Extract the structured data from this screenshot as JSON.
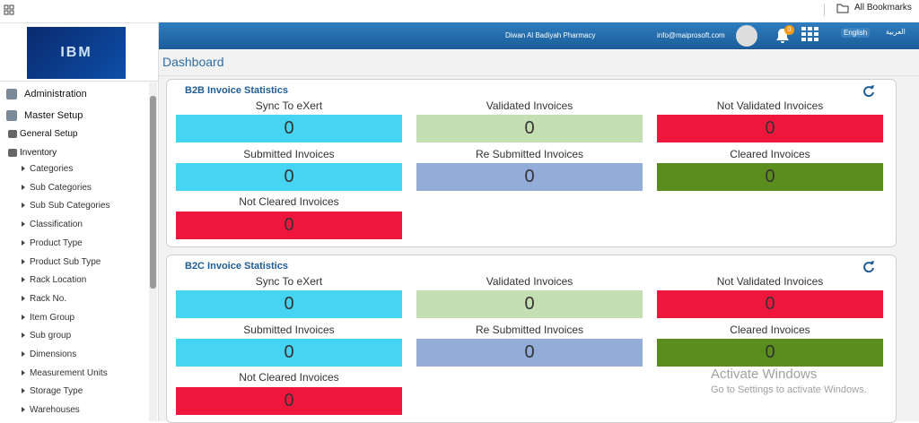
{
  "browser": {
    "bookmarks": "All Bookmarks"
  },
  "header": {
    "company": "Diwan Al Badiyah Pharmacy",
    "email": "info@maiprosoft.com",
    "notifications": 0,
    "languages": [
      "English",
      "العربية"
    ]
  },
  "logo": "IBM",
  "sidebar": {
    "sections": [
      "Administration",
      "Master Setup"
    ],
    "subsections": [
      "General Setup",
      "Inventory"
    ],
    "items": [
      "Categories",
      "Sub Categories",
      "Sub Sub Categories",
      "Classification",
      "Product Type",
      "Product Sub Type",
      "Rack Location",
      "Rack No.",
      "Item Group",
      "Sub group",
      "Dimensions",
      "Measurement Units",
      "Storage Type",
      "Warehouses"
    ]
  },
  "page_title": "Dashboard",
  "panels": [
    {
      "title": "B2B Invoice Statistics",
      "stats": [
        {
          "label": "Sync To eXert",
          "value": 0
        },
        {
          "label": "Validated Invoices",
          "value": 0
        },
        {
          "label": "Not Validated Invoices",
          "value": 0
        },
        {
          "label": "Submitted Invoices",
          "value": 0
        },
        {
          "label": "Re Submitted Invoices",
          "value": 0
        },
        {
          "label": "Cleared Invoices",
          "value": 0
        },
        {
          "label": "Not Cleared Invoices",
          "value": 0
        }
      ]
    },
    {
      "title": "B2C Invoice Statistics",
      "stats": [
        {
          "label": "Sync To eXert",
          "value": 0
        },
        {
          "label": "Validated Invoices",
          "value": 0
        },
        {
          "label": "Not Validated Invoices",
          "value": 0
        },
        {
          "label": "Submitted Invoices",
          "value": 0
        },
        {
          "label": "Re Submitted Invoices",
          "value": 0
        },
        {
          "label": "Cleared Invoices",
          "value": 0
        },
        {
          "label": "Not Cleared Invoices",
          "value": 0
        }
      ]
    }
  ],
  "watermark": {
    "title": "Activate Windows",
    "subtitle": "Go to Settings to activate Windows."
  }
}
